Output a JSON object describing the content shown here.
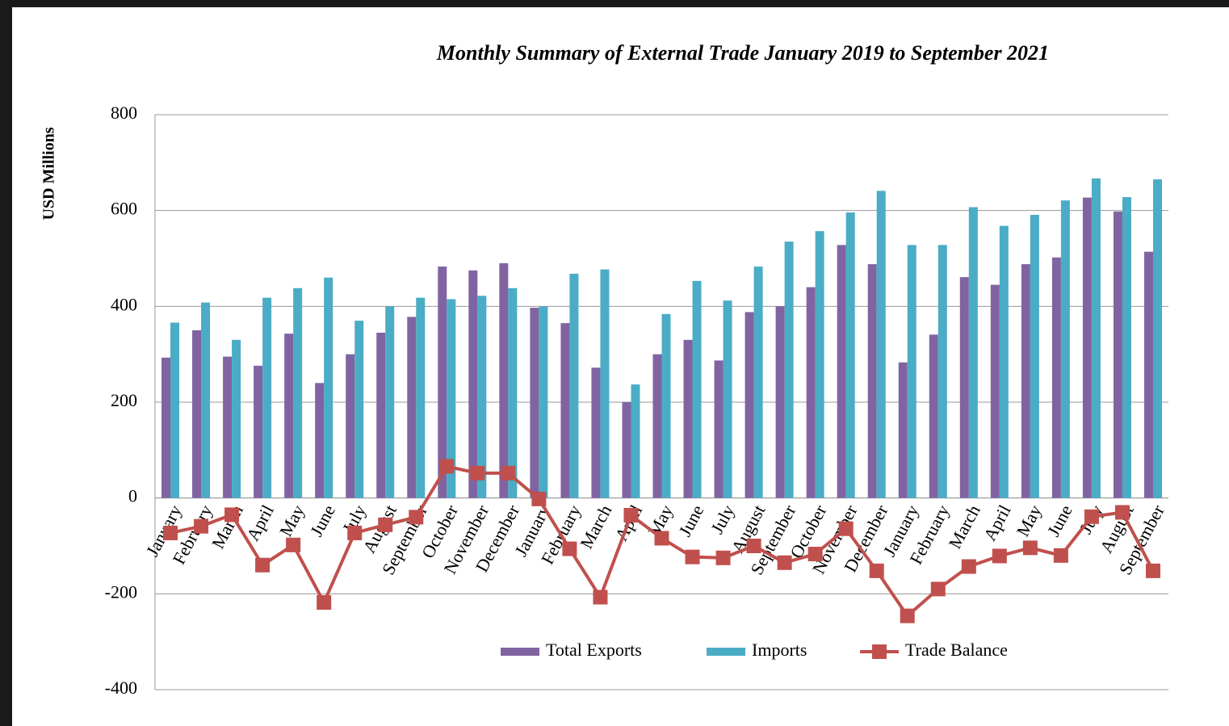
{
  "chart_data": {
    "type": "bar_line",
    "title": "Monthly  Summary of External Trade January 2019 to September 2021",
    "y_label": "USD Millions",
    "categories": [
      "January",
      "February",
      "March",
      "April",
      "May",
      "June",
      "July",
      "August",
      "September",
      "October",
      "November",
      "December",
      "January",
      "February",
      "March",
      "April",
      "May",
      "June",
      "July",
      "August",
      "September",
      "October",
      "November",
      "December",
      "January",
      "February",
      "March",
      "April",
      "May",
      "June",
      "July",
      "August",
      "September"
    ],
    "series": [
      {
        "name": "Total Exports",
        "type": "bar",
        "color": "#8064a2",
        "values": [
          293,
          350,
          295,
          276,
          343,
          240,
          300,
          345,
          378,
          483,
          475,
          490,
          397,
          365,
          272,
          200,
          300,
          330,
          287,
          388,
          400,
          440,
          528,
          488,
          283,
          341,
          461,
          445,
          488,
          502,
          627,
          598,
          514
        ]
      },
      {
        "name": "Imports",
        "type": "bar",
        "color": "#4bacc6",
        "values": [
          366,
          408,
          330,
          418,
          438,
          460,
          370,
          400,
          418,
          415,
          422,
          438,
          400,
          468,
          477,
          237,
          384,
          453,
          412,
          483,
          535,
          557,
          596,
          641,
          528,
          528,
          607,
          568,
          591,
          621,
          667,
          628,
          665
        ]
      },
      {
        "name": "Trade Balance",
        "type": "line",
        "color": "#c0504d",
        "values": [
          -73,
          -59,
          -35,
          -140,
          -98,
          -218,
          -73,
          -56,
          -40,
          66,
          52,
          52,
          -2,
          -106,
          -207,
          -36,
          -84,
          -123,
          -125,
          -100,
          -135,
          -117,
          -64,
          -152,
          -246,
          -190,
          -143,
          -121,
          -104,
          -120,
          -39,
          -30,
          -152
        ]
      }
    ],
    "ylim": [
      -400,
      800
    ],
    "yticks": [
      -400,
      -200,
      0,
      200,
      400,
      600,
      800
    ],
    "grid": true,
    "legend": "bottom"
  }
}
